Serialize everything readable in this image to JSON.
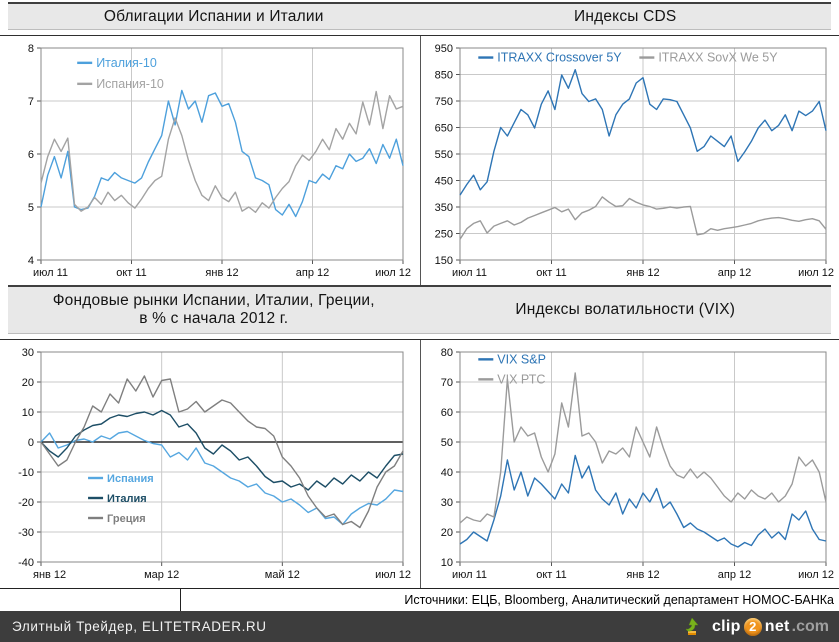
{
  "titles": {
    "bonds": "Облигации Испании и Италии",
    "cds": "Индексы CDS",
    "stocks_line1": "Фондовые рынки Испании, Италии, Греции,",
    "stocks_line2": "в % с начала 2012 г.",
    "vix": "Индексы волатильности (VIX)"
  },
  "footer": {
    "sources": "Источники: ЕЦБ, Bloomberg, Аналитический департамент НОМОС-БАНКа",
    "brand": "Элитный Трейдер, ELITETRADER.RU",
    "logo": {
      "clip": "clip",
      "two": "2",
      "net": "net",
      "dot_com": ".com"
    }
  },
  "colors": {
    "titlebar_bg": "#e8e8e8",
    "footer_bar": "#3d3d3d",
    "logo_orange": "#f0941d",
    "logo_green": "#79b21c",
    "grid": "#c9c9c9",
    "plot_border": "#888888"
  },
  "chart_data": [
    {
      "type": "line",
      "title": "Облигации Испании и Италии",
      "x_ticks": [
        "июл 11",
        "окт 11",
        "янв 12",
        "апр 12",
        "июл 12"
      ],
      "ylim": [
        4,
        8
      ],
      "ytick_step": 1,
      "grid": true,
      "legend": {
        "layout": "column",
        "x": 0.1,
        "y": 0.07,
        "dy": 21
      },
      "series": [
        {
          "name": "Италия-10",
          "color": "#4da0dc",
          "values": [
            5.0,
            5.6,
            5.95,
            5.55,
            6.05,
            5.0,
            4.95,
            4.98,
            5.2,
            5.55,
            5.5,
            5.65,
            5.55,
            5.5,
            5.45,
            5.55,
            5.85,
            6.1,
            6.35,
            7.0,
            6.55,
            7.2,
            6.85,
            7.0,
            6.6,
            7.1,
            7.15,
            6.9,
            6.95,
            6.6,
            6.05,
            5.95,
            5.55,
            5.5,
            5.42,
            4.95,
            4.85,
            5.05,
            4.82,
            5.1,
            5.5,
            5.45,
            5.62,
            5.52,
            5.78,
            5.72,
            6.0,
            5.86,
            5.92,
            6.1,
            5.82,
            6.18,
            5.92,
            6.28,
            5.78
          ]
        },
        {
          "name": "Испания-10",
          "color": "#a3a3a3",
          "values": [
            5.45,
            5.95,
            6.28,
            6.05,
            6.3,
            5.05,
            4.92,
            5.0,
            5.18,
            5.05,
            5.28,
            5.12,
            5.22,
            5.08,
            4.98,
            5.15,
            5.35,
            5.5,
            5.58,
            6.28,
            6.68,
            6.35,
            5.88,
            5.5,
            5.22,
            5.12,
            5.4,
            5.18,
            5.1,
            5.28,
            4.92,
            5.0,
            4.9,
            5.08,
            4.98,
            5.18,
            5.35,
            5.48,
            5.78,
            5.98,
            5.88,
            6.05,
            6.28,
            6.08,
            6.48,
            6.28,
            6.58,
            6.38,
            6.98,
            6.55,
            7.18,
            6.48,
            7.1,
            6.85,
            6.9
          ]
        }
      ]
    },
    {
      "type": "line",
      "title": "Индексы CDS",
      "x_ticks": [
        "июл 11",
        "окт 11",
        "янв 12",
        "апр 12",
        "июл 12"
      ],
      "ylim": [
        150,
        950
      ],
      "ytick_step": 100,
      "grid": true,
      "legend": {
        "layout": "row",
        "x": 0.05,
        "y": 0.045,
        "dx": 0.44
      },
      "series": [
        {
          "name": "ITRAXX Crossover 5Y",
          "color": "#2e75b5",
          "values": [
            395,
            435,
            470,
            415,
            445,
            560,
            650,
            618,
            668,
            718,
            698,
            648,
            738,
            788,
            718,
            848,
            798,
            868,
            778,
            748,
            758,
            718,
            618,
            698,
            738,
            758,
            818,
            838,
            738,
            718,
            758,
            755,
            748,
            698,
            648,
            560,
            578,
            618,
            598,
            578,
            618,
            522,
            558,
            598,
            648,
            678,
            638,
            658,
            698,
            638,
            712,
            695,
            712,
            748,
            638
          ]
        },
        {
          "name": "ITRAXX SovX We 5Y",
          "color": "#9b9b9b",
          "values": [
            228,
            268,
            288,
            298,
            252,
            278,
            288,
            298,
            282,
            292,
            308,
            318,
            328,
            338,
            348,
            332,
            342,
            302,
            328,
            338,
            352,
            388,
            368,
            352,
            355,
            382,
            368,
            358,
            352,
            342,
            345,
            350,
            346,
            350,
            352,
            245,
            250,
            268,
            262,
            268,
            272,
            276,
            282,
            288,
            298,
            304,
            308,
            310,
            306,
            300,
            296,
            302,
            306,
            298,
            266
          ]
        }
      ]
    },
    {
      "type": "line",
      "title": "Фондовые рынки Испании, Италии, Греции, в % с начала 2012 г.",
      "x_ticks": [
        "янв 12",
        "мар 12",
        "май 12",
        "июл 12"
      ],
      "ylim": [
        -40,
        30
      ],
      "ytick_step": 10,
      "grid": true,
      "zero_line": true,
      "legend": {
        "layout": "column",
        "x": 0.13,
        "y": 0.6,
        "dy": 20,
        "small": true
      },
      "series": [
        {
          "name": "Испания",
          "color": "#56a7e0",
          "values": [
            0,
            3,
            -2,
            -1,
            0.5,
            1,
            0,
            2,
            1,
            3,
            3.5,
            2,
            0.5,
            -0.5,
            -1,
            -5,
            -3.5,
            -6,
            -2,
            -7,
            -8,
            -10,
            -12,
            -13,
            -15,
            -14,
            -17,
            -18,
            -20,
            -19,
            -21,
            -23.5,
            -22,
            -25.5,
            -25,
            -27.5,
            -24,
            -22,
            -20.5,
            -21,
            -19,
            -16,
            -16.5
          ]
        },
        {
          "name": "Италия",
          "color": "#1d4e66",
          "values": [
            0,
            -3,
            -5,
            -2,
            2,
            4,
            5.5,
            6,
            8,
            9,
            8.5,
            9.5,
            10,
            9,
            10.5,
            9,
            5,
            6,
            3,
            -2,
            -4,
            -1,
            -3,
            -6,
            -5,
            -8,
            -11.5,
            -13.5,
            -13,
            -15,
            -14,
            -16,
            -13,
            -15,
            -12,
            -14,
            -11,
            -13,
            -10,
            -12,
            -8,
            -4.5,
            -4
          ]
        },
        {
          "name": "Греция",
          "color": "#7f7f7f",
          "values": [
            0,
            -4,
            -8,
            -6,
            0,
            5,
            12,
            10,
            16,
            13,
            21,
            17,
            22,
            15,
            20.5,
            21,
            10,
            11,
            13.5,
            10,
            12,
            14,
            13,
            10,
            7,
            5,
            4.5,
            2,
            -5,
            -8,
            -12,
            -18,
            -22,
            -25,
            -24,
            -27.5,
            -26.5,
            -28.5,
            -23,
            -15,
            -10,
            -8,
            -3
          ]
        }
      ]
    },
    {
      "type": "line",
      "title": "Индексы волатильности (VIX)",
      "x_ticks": [
        "июл 11",
        "окт 11",
        "янв 12",
        "апр 12",
        "июл 12"
      ],
      "ylim": [
        10,
        80
      ],
      "ytick_step": 10,
      "grid": true,
      "legend": {
        "layout": "column",
        "x": 0.05,
        "y": 0.035,
        "dy": 20
      },
      "series": [
        {
          "name": "VIX S&P",
          "color": "#2e75b5",
          "values": [
            16,
            17.5,
            20,
            18.5,
            17,
            24,
            32,
            44,
            34,
            40,
            32,
            38,
            36,
            33.5,
            31,
            36,
            33,
            45.5,
            38,
            42,
            34,
            31,
            29,
            33,
            26,
            31,
            28,
            33,
            30,
            34.5,
            28,
            30,
            26,
            21.5,
            23,
            21,
            20,
            18.5,
            17,
            18,
            16,
            15,
            16.5,
            15.5,
            19,
            21,
            18,
            20,
            17.5,
            26,
            24,
            27,
            21,
            17.5,
            17
          ]
        },
        {
          "name": "VIX РТС",
          "color": "#9b9b9b",
          "values": [
            23,
            25,
            24,
            23.5,
            26,
            25,
            40,
            71,
            50,
            55,
            52,
            53,
            45,
            40,
            46,
            63,
            55,
            73,
            52,
            53,
            50,
            43,
            47,
            46,
            48,
            45,
            55,
            50,
            45,
            55,
            48,
            42,
            39,
            38,
            41,
            38,
            40,
            38,
            35,
            32,
            30,
            33,
            31,
            34,
            32,
            31,
            33,
            30,
            32,
            36,
            45,
            42,
            44,
            40,
            30
          ]
        }
      ]
    }
  ]
}
